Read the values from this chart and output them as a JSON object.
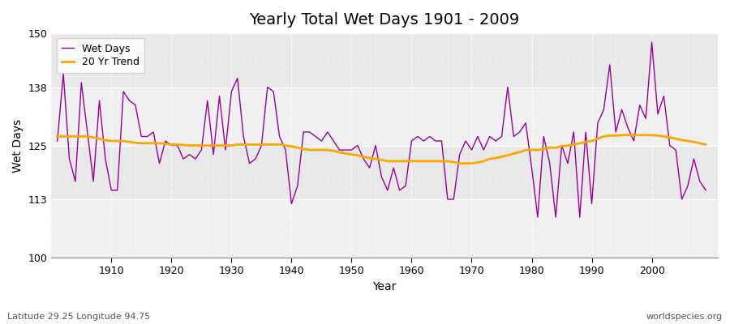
{
  "title": "Yearly Total Wet Days 1901 - 2009",
  "xlabel": "Year",
  "ylabel": "Wet Days",
  "subtitle": "Latitude 29.25 Longitude 94.75",
  "watermark": "worldspecies.org",
  "ylim": [
    100,
    150
  ],
  "yticks": [
    100,
    113,
    125,
    138,
    150
  ],
  "line_color": "#990099",
  "trend_color": "#FFA500",
  "fig_bg_color": "#FFFFFF",
  "plot_bg_color": "#E8E8E8",
  "band_color": "#F0F0F0",
  "legend_wet": "Wet Days",
  "legend_trend": "20 Yr Trend",
  "years": [
    1901,
    1902,
    1903,
    1904,
    1905,
    1906,
    1907,
    1908,
    1909,
    1910,
    1911,
    1912,
    1913,
    1914,
    1915,
    1916,
    1917,
    1918,
    1919,
    1920,
    1921,
    1922,
    1923,
    1924,
    1925,
    1926,
    1927,
    1928,
    1929,
    1930,
    1931,
    1932,
    1933,
    1934,
    1935,
    1936,
    1937,
    1938,
    1939,
    1940,
    1941,
    1942,
    1943,
    1944,
    1945,
    1946,
    1947,
    1948,
    1949,
    1950,
    1951,
    1952,
    1953,
    1954,
    1955,
    1956,
    1957,
    1958,
    1959,
    1960,
    1961,
    1962,
    1963,
    1964,
    1965,
    1966,
    1967,
    1968,
    1969,
    1970,
    1971,
    1972,
    1973,
    1974,
    1975,
    1976,
    1977,
    1978,
    1979,
    1980,
    1981,
    1982,
    1983,
    1984,
    1985,
    1986,
    1987,
    1988,
    1989,
    1990,
    1991,
    1992,
    1993,
    1994,
    1995,
    1996,
    1997,
    1998,
    1999,
    2000,
    2001,
    2002,
    2003,
    2004,
    2005,
    2006,
    2007,
    2008,
    2009
  ],
  "wet_days": [
    126,
    141,
    122,
    117,
    139,
    128,
    117,
    135,
    122,
    115,
    115,
    137,
    135,
    134,
    127,
    127,
    128,
    121,
    126,
    125,
    125,
    122,
    123,
    122,
    124,
    135,
    123,
    136,
    124,
    137,
    140,
    127,
    121,
    122,
    125,
    138,
    137,
    127,
    124,
    112,
    116,
    128,
    128,
    127,
    126,
    128,
    126,
    124,
    124,
    124,
    125,
    122,
    120,
    125,
    118,
    115,
    120,
    115,
    116,
    126,
    127,
    126,
    127,
    126,
    126,
    113,
    113,
    123,
    126,
    124,
    127,
    124,
    127,
    126,
    127,
    138,
    127,
    128,
    130,
    120,
    109,
    127,
    121,
    109,
    125,
    121,
    128,
    109,
    128,
    112,
    130,
    133,
    143,
    128,
    133,
    129,
    126,
    134,
    131,
    148,
    132,
    136,
    125,
    124,
    113,
    116,
    122,
    117,
    115
  ],
  "trend": [
    127.0,
    127.0,
    127.0,
    127.0,
    127.0,
    127.0,
    126.8,
    126.5,
    126.2,
    126.0,
    126.0,
    126.0,
    125.8,
    125.6,
    125.5,
    125.5,
    125.5,
    125.5,
    125.4,
    125.2,
    125.2,
    125.1,
    125.0,
    125.0,
    125.0,
    125.0,
    125.0,
    125.0,
    125.0,
    125.0,
    125.2,
    125.2,
    125.2,
    125.2,
    125.2,
    125.2,
    125.2,
    125.2,
    125.0,
    124.8,
    124.5,
    124.2,
    124.0,
    124.0,
    124.0,
    124.0,
    123.8,
    123.5,
    123.2,
    123.0,
    122.8,
    122.5,
    122.2,
    122.0,
    121.8,
    121.5,
    121.5,
    121.5,
    121.5,
    121.5,
    121.5,
    121.5,
    121.5,
    121.5,
    121.5,
    121.5,
    121.3,
    121.0,
    121.0,
    121.0,
    121.2,
    121.5,
    122.0,
    122.2,
    122.5,
    122.8,
    123.2,
    123.5,
    124.0,
    124.0,
    124.0,
    124.2,
    124.5,
    124.5,
    124.8,
    125.0,
    125.2,
    125.5,
    125.8,
    126.0,
    126.5,
    127.0,
    127.2,
    127.2,
    127.3,
    127.3,
    127.3,
    127.3,
    127.3,
    127.3,
    127.2,
    127.0,
    126.8,
    126.5,
    126.2,
    126.0,
    125.8,
    125.5,
    125.2
  ]
}
